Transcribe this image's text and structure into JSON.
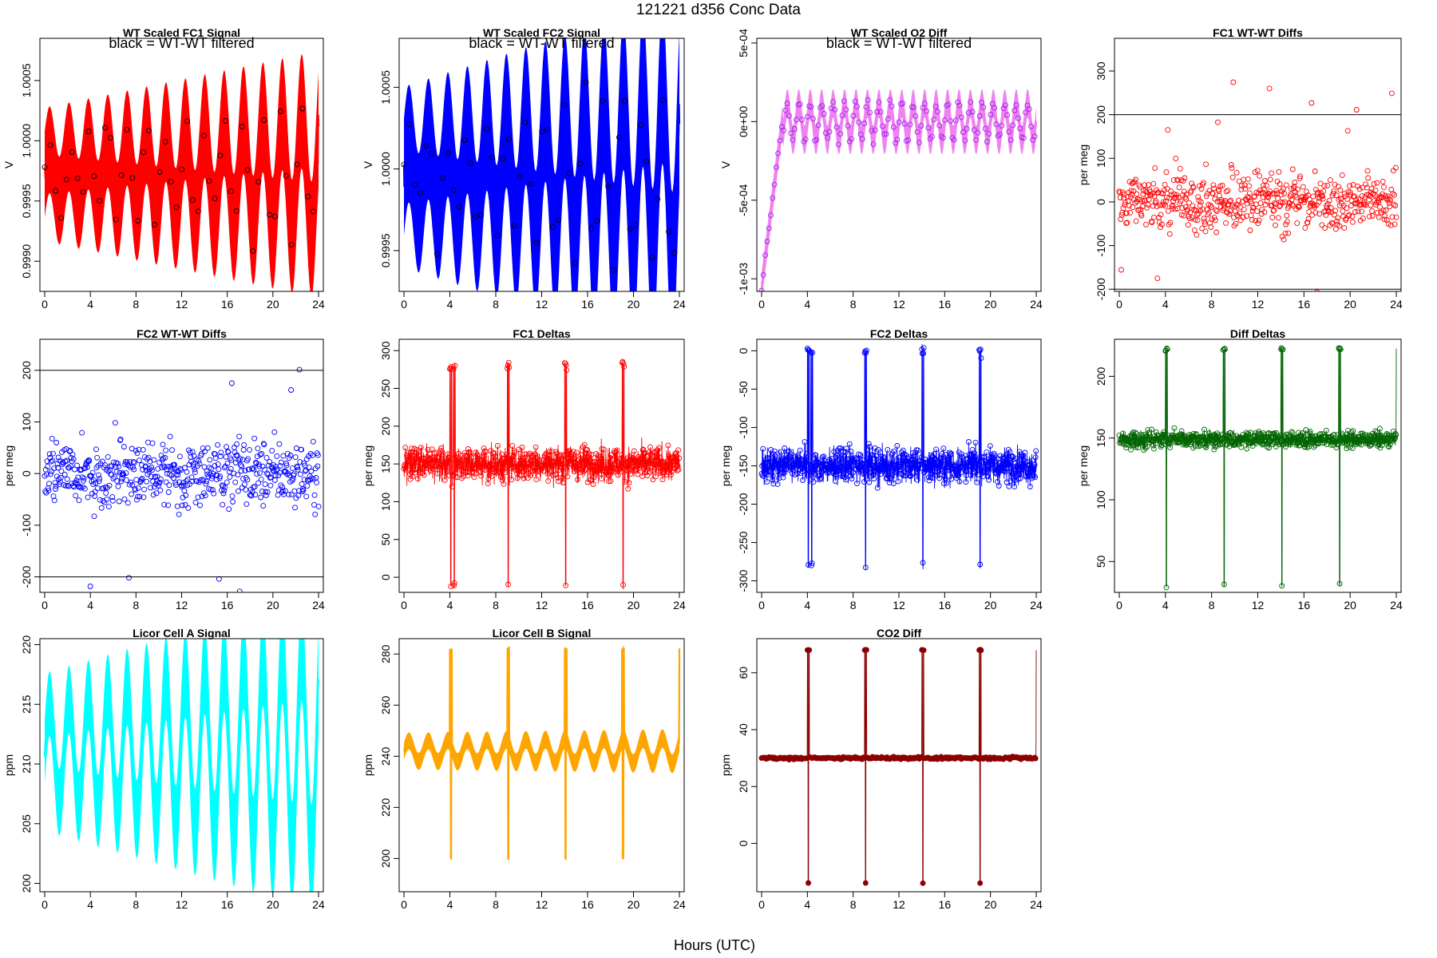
{
  "page": {
    "title": "121221   d356   Conc Data",
    "xlabel": "Hours (UTC)"
  },
  "chart_data": [
    {
      "id": "fc1-signal",
      "type": "line",
      "title": "WT Scaled FC1 Signal",
      "ylabel": "V",
      "annotation": "black = WT-WT filtered",
      "color": "#ff0000",
      "fill": true,
      "markers": "overlay",
      "xlim": [
        0,
        24
      ],
      "ylim": [
        0.99875,
        1.00085
      ],
      "xticks": [
        0,
        4,
        8,
        12,
        16,
        20,
        24
      ],
      "yticks": [
        0.999,
        0.9995,
        1.0,
        1.0005
      ],
      "ytick_labels": [
        "0.9990",
        "0.9995",
        "1.0000",
        "1.0005"
      ],
      "baseline": 0.99972,
      "amp": [
        0.0002,
        0.00055
      ],
      "period": 1.7,
      "noise": 0.00018,
      "hlines": [],
      "spikes": [],
      "ramp": null
    },
    {
      "id": "fc2-signal",
      "type": "line",
      "title": "WT Scaled FC2 Signal",
      "ylabel": "V",
      "annotation": "black = WT-WT filtered",
      "color": "#0000ff",
      "fill": true,
      "markers": "overlay",
      "xlim": [
        0,
        24
      ],
      "ylim": [
        0.99925,
        1.0008
      ],
      "xticks": [
        0,
        4,
        8,
        12,
        16,
        20,
        24
      ],
      "yticks": [
        0.9995,
        1.0,
        1.0005
      ],
      "ytick_labels": [
        "0.9995",
        "1.0000",
        "1.0005"
      ],
      "baseline": 0.99995,
      "amp": [
        0.0002,
        0.0006
      ],
      "period": 1.7,
      "noise": 0.00018,
      "hlines": [],
      "spikes": [],
      "ramp": null
    },
    {
      "id": "o2-diff",
      "type": "line",
      "title": "WT Scaled O2 Diff",
      "ylabel": "V",
      "annotation": "black = WT-WT filtered",
      "color": "#ee82ee",
      "fill": true,
      "markers": "purple",
      "xlim": [
        0,
        24
      ],
      "ylim": [
        -0.00108,
        0.00053
      ],
      "xticks": [
        0,
        4,
        8,
        12,
        16,
        20,
        24
      ],
      "yticks": [
        -0.001,
        -0.0005,
        0.0,
        0.0005
      ],
      "ytick_labels": [
        "-1e-03",
        "-5e-04",
        "0e+00",
        "5e-04"
      ],
      "baseline": 0.0,
      "amp": [
        0.00012,
        0.00012
      ],
      "period": 1.0,
      "noise": 3e-05,
      "hlines": [],
      "spikes": [],
      "ramp": {
        "x0": 0,
        "x1": 1.8,
        "y0": -0.00105
      }
    },
    {
      "id": "fc1-wt-diffs",
      "type": "scatter",
      "title": "FC1 WT-WT Diffs",
      "ylabel": "per meg",
      "annotation": "",
      "color": "#ff0000",
      "fill": false,
      "markers": "open",
      "xlim": [
        0,
        24
      ],
      "ylim": [
        -205,
        375
      ],
      "xticks": [
        0,
        4,
        8,
        12,
        16,
        20,
        24
      ],
      "yticks": [
        -200,
        -100,
        0,
        100,
        200,
        300
      ],
      "ytick_labels": [
        "-200",
        "-100",
        "0",
        "100",
        "200",
        "300"
      ],
      "baseline": 0,
      "amp": [
        0,
        0
      ],
      "period": 1,
      "noise": 60,
      "hlines": [
        200,
        -200
      ],
      "spikes": [],
      "ramp": null
    },
    {
      "id": "fc2-wt-diffs",
      "type": "scatter",
      "title": "FC2 WT-WT Diffs",
      "ylabel": "per meg",
      "annotation": "",
      "color": "#0000ff",
      "fill": false,
      "markers": "open",
      "xlim": [
        0,
        24
      ],
      "ylim": [
        -230,
        260
      ],
      "xticks": [
        0,
        4,
        8,
        12,
        16,
        20,
        24
      ],
      "yticks": [
        -200,
        -100,
        0,
        100,
        200
      ],
      "ytick_labels": [
        "-200",
        "-100",
        "0",
        "100",
        "200"
      ],
      "baseline": 0,
      "amp": [
        0,
        0
      ],
      "period": 1,
      "noise": 60,
      "hlines": [
        200,
        -200
      ],
      "spikes": [],
      "ramp": null
    },
    {
      "id": "fc1-deltas",
      "type": "line",
      "title": "FC1 Deltas",
      "ylabel": "per meg",
      "annotation": "",
      "color": "#ff0000",
      "fill": false,
      "markers": "open",
      "xlim": [
        0,
        24
      ],
      "ylim": [
        -20,
        315
      ],
      "xticks": [
        0,
        4,
        8,
        12,
        16,
        20,
        24
      ],
      "yticks": [
        0,
        50,
        100,
        150,
        200,
        250,
        300
      ],
      "ytick_labels": [
        "0",
        "50",
        "100",
        "150",
        "200",
        "250",
        "300"
      ],
      "baseline": 150,
      "amp": [
        0,
        0
      ],
      "period": 1,
      "noise": 22,
      "hlines": [],
      "spikes": [
        4,
        4.3,
        9,
        14,
        19
      ],
      "spike_low": -10,
      "spike_high": 280,
      "ramp": null
    },
    {
      "id": "fc2-deltas",
      "type": "line",
      "title": "FC2 Deltas",
      "ylabel": "per meg",
      "annotation": "",
      "color": "#0000ff",
      "fill": false,
      "markers": "open",
      "xlim": [
        0,
        24
      ],
      "ylim": [
        -315,
        15
      ],
      "xticks": [
        0,
        4,
        8,
        12,
        16,
        20,
        24
      ],
      "yticks": [
        -300,
        -250,
        -200,
        -150,
        -100,
        -50,
        0
      ],
      "ytick_labels": [
        "-300",
        "-250",
        "-200",
        "-150",
        "-100",
        "-50",
        "0"
      ],
      "baseline": -150,
      "amp": [
        0,
        0
      ],
      "period": 1,
      "noise": 22,
      "hlines": [],
      "spikes": [
        4,
        4.3,
        9,
        14,
        19
      ],
      "spike_low": -280,
      "spike_high": 0,
      "ramp": null
    },
    {
      "id": "diff-deltas",
      "type": "line",
      "title": "Diff Deltas",
      "ylabel": "per meg",
      "annotation": "",
      "color": "#006400",
      "fill": false,
      "markers": "open",
      "xlim": [
        0,
        24
      ],
      "ylim": [
        25,
        230
      ],
      "xticks": [
        0,
        4,
        8,
        12,
        16,
        20,
        24
      ],
      "yticks": [
        50,
        100,
        150,
        200
      ],
      "ytick_labels": [
        "50",
        "100",
        "150",
        "200"
      ],
      "baseline": 149,
      "amp": [
        0,
        0
      ],
      "period": 1,
      "noise": 6,
      "hlines": [],
      "spikes": [
        4,
        9,
        14,
        19,
        24
      ],
      "spike_low": 30,
      "spike_high": 222,
      "ramp": null
    },
    {
      "id": "licor-a",
      "type": "line",
      "title": "Licor Cell A Signal",
      "ylabel": "ppm",
      "annotation": "",
      "color": "#00ffff",
      "fill": true,
      "markers": "none",
      "xlim": [
        0,
        24
      ],
      "ylim": [
        199.3,
        220.5
      ],
      "xticks": [
        0,
        4,
        8,
        12,
        16,
        20,
        24
      ],
      "yticks": [
        200,
        205,
        210,
        215,
        220
      ],
      "ytick_labels": [
        "200",
        "205",
        "210",
        "215",
        "220"
      ],
      "baseline": 211,
      "amp": [
        4,
        9
      ],
      "period": 1.7,
      "noise": 0.8,
      "hlines": [],
      "spikes": [],
      "ramp": null
    },
    {
      "id": "licor-b",
      "type": "line",
      "title": "Licor Cell B Signal",
      "ylabel": "ppm",
      "annotation": "",
      "color": "#ffa500",
      "fill": true,
      "markers": "none",
      "xlim": [
        0,
        24
      ],
      "ylim": [
        187,
        286
      ],
      "xticks": [
        0,
        4,
        8,
        12,
        16,
        20,
        24
      ],
      "yticks": [
        200,
        220,
        240,
        260,
        280
      ],
      "ytick_labels": [
        "200",
        "220",
        "240",
        "260",
        "280"
      ],
      "baseline": 242,
      "amp": [
        4,
        5
      ],
      "period": 1.7,
      "noise": 1.2,
      "hlines": [],
      "spikes": [
        4,
        9,
        14,
        19,
        24
      ],
      "spike_low": 200,
      "spike_high": 282,
      "ramp": null
    },
    {
      "id": "co2-diff",
      "type": "line",
      "title": "CO2 Diff",
      "ylabel": "ppm",
      "annotation": "",
      "color": "#8b0000",
      "fill": false,
      "markers": "filled",
      "xlim": [
        0,
        24
      ],
      "ylim": [
        -17,
        72
      ],
      "xticks": [
        0,
        4,
        8,
        12,
        16,
        20,
        24
      ],
      "yticks": [
        0,
        20,
        40,
        60
      ],
      "ytick_labels": [
        "0",
        "20",
        "40",
        "60"
      ],
      "baseline": 30,
      "amp": [
        0,
        0
      ],
      "period": 1,
      "noise": 0.4,
      "hlines": [],
      "spikes": [
        4,
        9,
        14,
        19,
        24
      ],
      "spike_low": -14,
      "spike_high": 68,
      "ramp": null
    }
  ]
}
